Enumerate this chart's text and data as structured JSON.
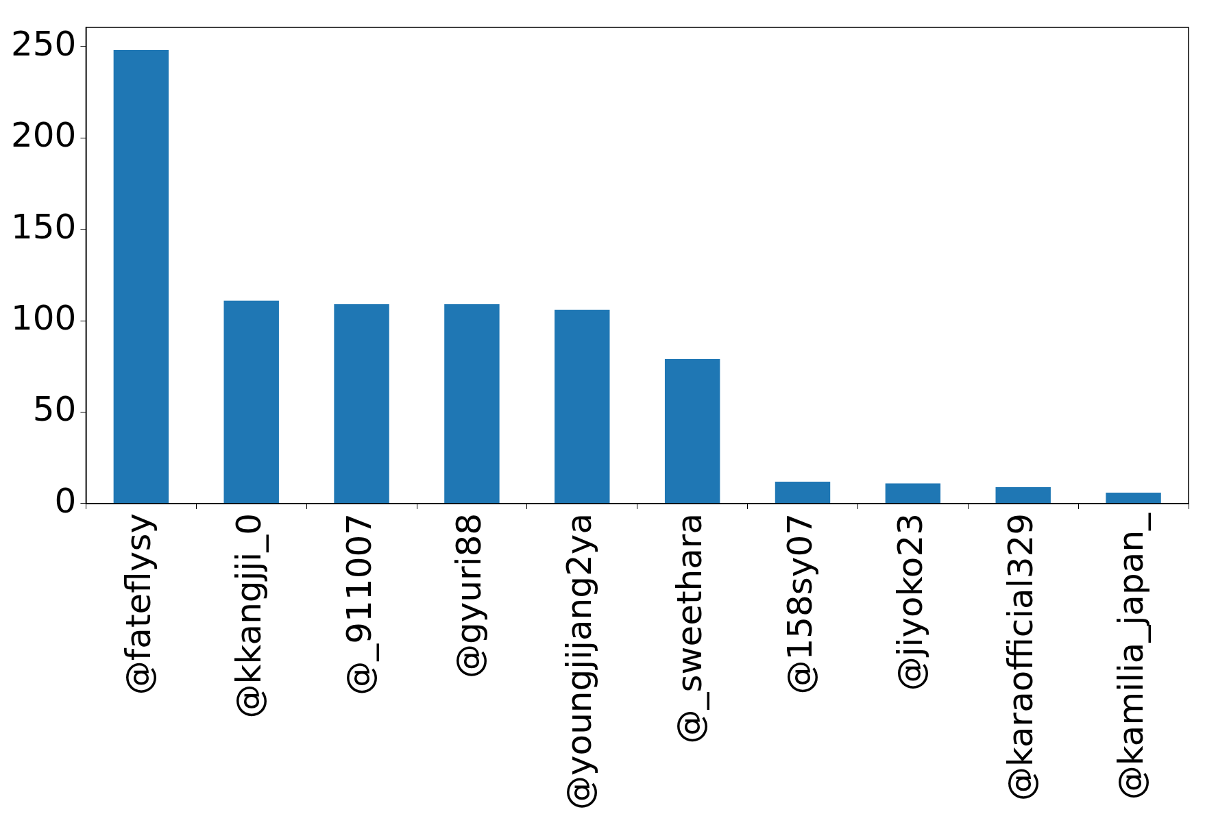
{
  "chart_data": {
    "type": "bar",
    "categories": [
      "@fateflysy",
      "@kkangjji_0",
      "@_911007",
      "@gyuri88",
      "@youngjijang2ya",
      "@_sweethara",
      "@158sy07",
      "@jiyoko23",
      "@karaofficial329",
      "@kamilia_japan_"
    ],
    "values": [
      248,
      111,
      109,
      109,
      106,
      79,
      12,
      11,
      9,
      6
    ],
    "color": "#1f77b4",
    "ylim": [
      0,
      260.4
    ],
    "yticks": [
      0,
      50,
      100,
      150,
      200,
      250
    ],
    "grid": false,
    "legend": false
  }
}
